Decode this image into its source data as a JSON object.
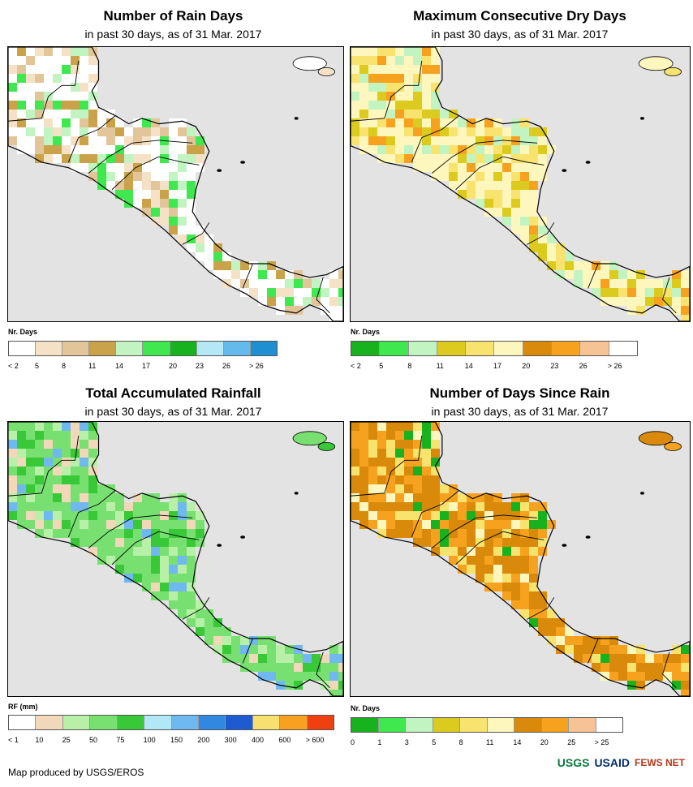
{
  "panels": [
    {
      "id": "rain_days",
      "title": "Number of Rain Days",
      "subtitle": "in past 30 days, as of 31 Mar. 2017",
      "legend_title": "Nr. Days",
      "legend_colors": [
        "#ffffff",
        "#f5e2c6",
        "#e3c59a",
        "#c9a24a",
        "#c2f4c2",
        "#3ee84e",
        "#18b21e",
        "#b5e8f5",
        "#64baec",
        "#1e8fd0"
      ],
      "legend_labels": [
        "< 2",
        "5",
        "8",
        "11",
        "14",
        "17",
        "20",
        "23",
        "26",
        "> 26"
      ],
      "land_palette": [
        "#ffffff",
        "#f5e2c6",
        "#e3c59a",
        "#c9a24a",
        "#c2f4c2",
        "#3ee84e"
      ]
    },
    {
      "id": "max_dry_days",
      "title": "Maximum Consecutive Dry Days",
      "subtitle": "in past 30 days, as of 31 Mar. 2017",
      "legend_title": "Nr. Days",
      "legend_colors": [
        "#18b21e",
        "#3ee84e",
        "#c2f4c2",
        "#dccb1e",
        "#f7e36e",
        "#fdf7bd",
        "#d98a0a",
        "#f7a21e",
        "#f7c294",
        "#ffffff"
      ],
      "legend_labels": [
        "< 2",
        "5",
        "8",
        "11",
        "14",
        "17",
        "20",
        "23",
        "26",
        "> 26"
      ],
      "land_palette": [
        "#fdf7bd",
        "#f7e36e",
        "#dccb1e",
        "#c2f4c2",
        "#f7a21e",
        "#fdf7bd"
      ]
    },
    {
      "id": "accum_rainfall",
      "title": "Total Accumulated Rainfall",
      "subtitle": "in past 30 days, as of 31 Mar. 2017",
      "legend_title": "RF (mm)",
      "legend_colors": [
        "#ffffff",
        "#f0d8b8",
        "#b8f0a8",
        "#78e070",
        "#38c838",
        "#b0e8f8",
        "#70b8f0",
        "#3088e0",
        "#1e5ad0",
        "#f8e070",
        "#f8a020",
        "#f04010"
      ],
      "legend_labels": [
        "< 1",
        "10",
        "25",
        "50",
        "75",
        "100",
        "150",
        "200",
        "300",
        "400",
        "600",
        "> 600"
      ],
      "land_palette": [
        "#78e070",
        "#38c838",
        "#b8f0a8",
        "#f0d8b8",
        "#70b8f0",
        "#78e070"
      ]
    },
    {
      "id": "days_since_rain",
      "title": "Number of Days Since Rain",
      "subtitle": "in past 30 days, as of 31 Mar. 2017",
      "legend_title": "Nr. Days",
      "legend_colors": [
        "#18b21e",
        "#3ee84e",
        "#c2f4c2",
        "#dccb1e",
        "#f7e36e",
        "#fdf7bd",
        "#d98a0a",
        "#f7a21e",
        "#f7c294",
        "#ffffff"
      ],
      "legend_labels": [
        "0",
        "1",
        "3",
        "5",
        "8",
        "11",
        "14",
        "20",
        "25",
        "> 25"
      ],
      "land_palette": [
        "#d98a0a",
        "#f7a21e",
        "#f7e36e",
        "#fdf7bd",
        "#18b21e",
        "#f7a21e"
      ]
    }
  ],
  "footer": {
    "credit": "Map produced by USGS/EROS"
  },
  "logos": {
    "usgs": "USGS",
    "usaid": "USAID",
    "fews": "FEWS NET"
  }
}
